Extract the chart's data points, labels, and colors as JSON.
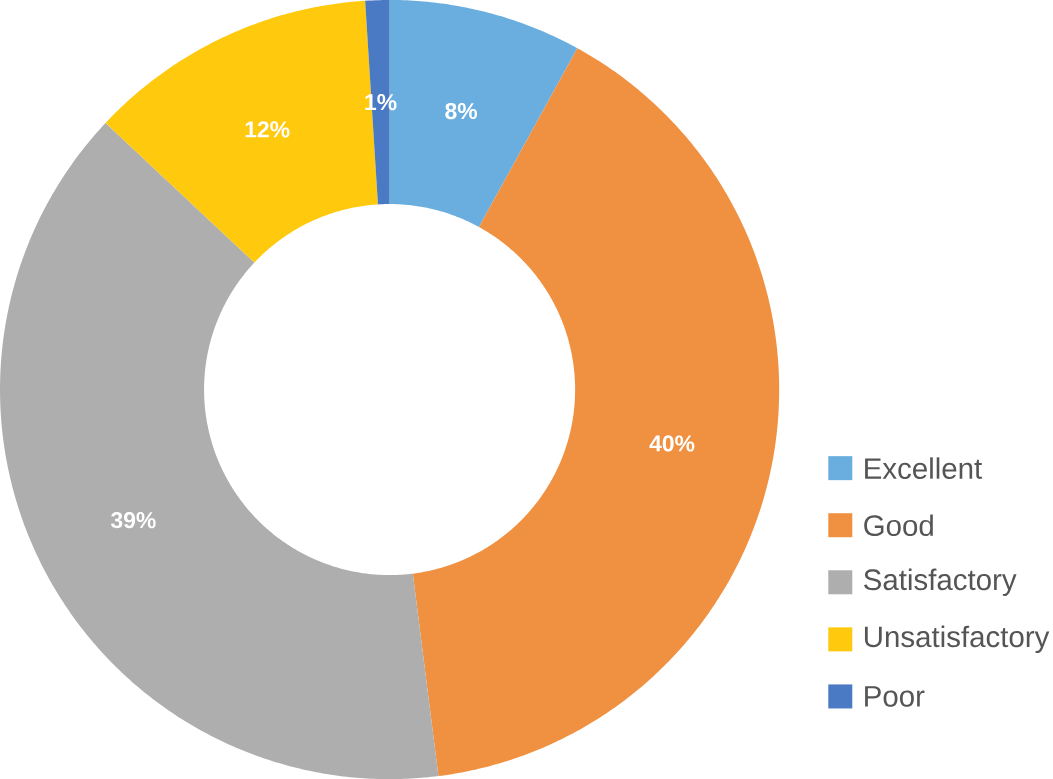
{
  "chart_data": {
    "type": "donut",
    "categories": [
      "Excellent",
      "Good",
      "Satisfactory",
      "Unsatisfactory",
      "Poor"
    ],
    "values": [
      8,
      40,
      39,
      12,
      1
    ],
    "value_labels": [
      "8%",
      "40%",
      "39%",
      "12%",
      "1%"
    ],
    "colors": [
      "#6aaee0",
      "#f09142",
      "#aeaeae",
      "#ffc90e",
      "#4a7ac4"
    ],
    "legend": "right"
  }
}
